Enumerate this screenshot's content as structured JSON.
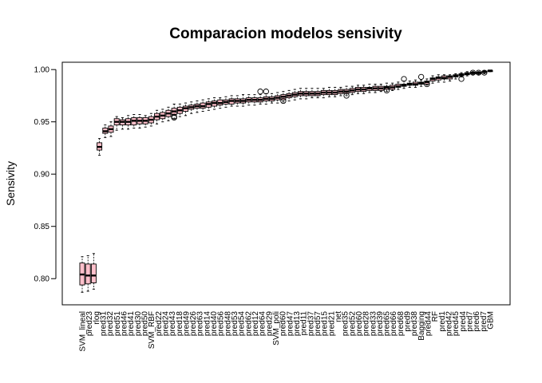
{
  "chart_data": {
    "type": "boxplot",
    "title": "Comparacion modelos sensivity",
    "xlabel": "",
    "ylabel": "Sensivity",
    "ylim": [
      0.775,
      1.007
    ],
    "yticks": [
      0.8,
      0.85,
      0.9,
      0.95,
      1.0
    ],
    "ytick_labels": [
      "0.80",
      "0.85",
      "0.90",
      "0.95",
      "1.00"
    ],
    "grid": false,
    "legend": "none",
    "box_fill": "#ffc0cb",
    "n_categories": 72,
    "category_labels_visible": [
      {
        "index": 0,
        "label": "SVM_lineal"
      },
      {
        "index": 1,
        "label": "pred23"
      },
      {
        "index": 2,
        "label": "rlog"
      },
      {
        "index": 3,
        "label": "pred31"
      },
      {
        "index": 4,
        "label": "pred32"
      },
      {
        "index": 5,
        "label": "pred51"
      },
      {
        "index": 6,
        "label": "pred46"
      },
      {
        "index": 7,
        "label": "pred41"
      },
      {
        "index": 8,
        "label": "pred30"
      },
      {
        "index": 9,
        "label": "pred50"
      },
      {
        "index": 10,
        "label": "SVM_RBF"
      },
      {
        "index": 11,
        "label": "pred22"
      },
      {
        "index": 12,
        "label": "pred24"
      },
      {
        "index": 13,
        "label": "pred43"
      },
      {
        "index": 14,
        "label": "pred18"
      },
      {
        "index": 15,
        "label": "pred49"
      },
      {
        "index": 16,
        "label": "pred26"
      },
      {
        "index": 17,
        "label": "pred63"
      },
      {
        "index": 18,
        "label": "pred14"
      },
      {
        "index": 19,
        "label": "pred40"
      },
      {
        "index": 20,
        "label": "pred56"
      },
      {
        "index": 21,
        "label": "pred48"
      },
      {
        "index": 22,
        "label": "pred53"
      },
      {
        "index": 23,
        "label": "pred54"
      },
      {
        "index": 24,
        "label": "pred62"
      },
      {
        "index": 25,
        "label": "pred12"
      },
      {
        "index": 26,
        "label": "pred64"
      },
      {
        "index": 27,
        "label": "pred29"
      },
      {
        "index": 28,
        "label": "SVM_poli"
      },
      {
        "index": 29,
        "label": "pred60"
      },
      {
        "index": 30,
        "label": "pred47"
      },
      {
        "index": 31,
        "label": "pred13"
      },
      {
        "index": 32,
        "label": "pred11"
      },
      {
        "index": 33,
        "label": "pred37"
      },
      {
        "index": 34,
        "label": "pred57"
      },
      {
        "index": 35,
        "label": "pred15"
      },
      {
        "index": 36,
        "label": "pred21"
      },
      {
        "index": 37,
        "label": "net"
      },
      {
        "index": 38,
        "label": "pred35"
      },
      {
        "index": 39,
        "label": "pred52"
      },
      {
        "index": 40,
        "label": "pred60"
      },
      {
        "index": 41,
        "label": "pred28"
      },
      {
        "index": 42,
        "label": "pred33"
      },
      {
        "index": 43,
        "label": "pred39"
      },
      {
        "index": 44,
        "label": "pred65"
      },
      {
        "index": 45,
        "label": "pred66"
      },
      {
        "index": 46,
        "label": "pred68"
      },
      {
        "index": 47,
        "label": "pred9"
      },
      {
        "index": 48,
        "label": "pred38"
      },
      {
        "index": 49,
        "label": "Bagging"
      },
      {
        "index": 50,
        "label": "pred44"
      },
      {
        "index": 51,
        "label": "RF"
      },
      {
        "index": 52,
        "label": "pred1"
      },
      {
        "index": 53,
        "label": "pred42"
      },
      {
        "index": 54,
        "label": "pred45"
      },
      {
        "index": 55,
        "label": "pred4"
      },
      {
        "index": 56,
        "label": "pred7"
      },
      {
        "index": 57,
        "label": "pred6"
      },
      {
        "index": 58,
        "label": "pred7"
      },
      {
        "index": 59,
        "label": "GBM"
      }
    ],
    "boxes": [
      {
        "whislo": 0.787,
        "q1": 0.794,
        "med": 0.804,
        "q3": 0.815,
        "whishi": 0.821,
        "outliers": []
      },
      {
        "whislo": 0.788,
        "q1": 0.795,
        "med": 0.803,
        "q3": 0.814,
        "whishi": 0.822,
        "outliers": []
      },
      {
        "whislo": 0.79,
        "q1": 0.796,
        "med": 0.803,
        "q3": 0.814,
        "whishi": 0.824,
        "outliers": []
      },
      {
        "whislo": 0.918,
        "q1": 0.923,
        "med": 0.926,
        "q3": 0.93,
        "whishi": 0.934,
        "outliers": []
      },
      {
        "whislo": 0.935,
        "q1": 0.939,
        "med": 0.941,
        "q3": 0.944,
        "whishi": 0.947,
        "outliers": []
      },
      {
        "whislo": 0.936,
        "q1": 0.94,
        "med": 0.943,
        "q3": 0.946,
        "whishi": 0.95,
        "outliers": []
      },
      {
        "whislo": 0.942,
        "q1": 0.947,
        "med": 0.95,
        "q3": 0.953,
        "whishi": 0.955,
        "outliers": []
      },
      {
        "whislo": 0.943,
        "q1": 0.947,
        "med": 0.95,
        "q3": 0.952,
        "whishi": 0.954,
        "outliers": []
      },
      {
        "whislo": 0.943,
        "q1": 0.947,
        "med": 0.95,
        "q3": 0.953,
        "whishi": 0.956,
        "outliers": []
      },
      {
        "whislo": 0.944,
        "q1": 0.947,
        "med": 0.951,
        "q3": 0.954,
        "whishi": 0.957,
        "outliers": []
      },
      {
        "whislo": 0.944,
        "q1": 0.948,
        "med": 0.951,
        "q3": 0.954,
        "whishi": 0.957,
        "outliers": []
      },
      {
        "whislo": 0.945,
        "q1": 0.948,
        "med": 0.951,
        "q3": 0.954,
        "whishi": 0.956,
        "outliers": []
      },
      {
        "whislo": 0.946,
        "q1": 0.949,
        "med": 0.952,
        "q3": 0.955,
        "whishi": 0.958,
        "outliers": []
      },
      {
        "whislo": 0.948,
        "q1": 0.952,
        "med": 0.955,
        "q3": 0.958,
        "whishi": 0.961,
        "outliers": []
      },
      {
        "whislo": 0.95,
        "q1": 0.953,
        "med": 0.956,
        "q3": 0.959,
        "whishi": 0.962,
        "outliers": []
      },
      {
        "whislo": 0.951,
        "q1": 0.955,
        "med": 0.958,
        "q3": 0.961,
        "whishi": 0.964,
        "outliers": []
      },
      {
        "whislo": 0.953,
        "q1": 0.957,
        "med": 0.96,
        "q3": 0.963,
        "whishi": 0.967,
        "outliers": [
          0.954,
          0.955
        ]
      },
      {
        "whislo": 0.955,
        "q1": 0.958,
        "med": 0.961,
        "q3": 0.964,
        "whishi": 0.967,
        "outliers": []
      },
      {
        "whislo": 0.956,
        "q1": 0.96,
        "med": 0.963,
        "q3": 0.965,
        "whishi": 0.968,
        "outliers": []
      },
      {
        "whislo": 0.958,
        "q1": 0.962,
        "med": 0.964,
        "q3": 0.966,
        "whishi": 0.969,
        "outliers": []
      },
      {
        "whislo": 0.959,
        "q1": 0.963,
        "med": 0.965,
        "q3": 0.967,
        "whishi": 0.97,
        "outliers": []
      },
      {
        "whislo": 0.96,
        "q1": 0.963,
        "med": 0.965,
        "q3": 0.968,
        "whishi": 0.971,
        "outliers": []
      },
      {
        "whislo": 0.961,
        "q1": 0.964,
        "med": 0.967,
        "q3": 0.969,
        "whishi": 0.972,
        "outliers": []
      },
      {
        "whislo": 0.962,
        "q1": 0.965,
        "med": 0.968,
        "q3": 0.97,
        "whishi": 0.973,
        "outliers": []
      },
      {
        "whislo": 0.963,
        "q1": 0.966,
        "med": 0.968,
        "q3": 0.971,
        "whishi": 0.973,
        "outliers": []
      },
      {
        "whislo": 0.964,
        "q1": 0.967,
        "med": 0.969,
        "q3": 0.971,
        "whishi": 0.974,
        "outliers": []
      },
      {
        "whislo": 0.965,
        "q1": 0.967,
        "med": 0.97,
        "q3": 0.972,
        "whishi": 0.975,
        "outliers": []
      },
      {
        "whislo": 0.965,
        "q1": 0.968,
        "med": 0.97,
        "q3": 0.972,
        "whishi": 0.975,
        "outliers": []
      },
      {
        "whislo": 0.965,
        "q1": 0.968,
        "med": 0.97,
        "q3": 0.972,
        "whishi": 0.976,
        "outliers": []
      },
      {
        "whislo": 0.966,
        "q1": 0.969,
        "med": 0.971,
        "q3": 0.973,
        "whishi": 0.976,
        "outliers": []
      },
      {
        "whislo": 0.966,
        "q1": 0.969,
        "med": 0.971,
        "q3": 0.973,
        "whishi": 0.976,
        "outliers": []
      },
      {
        "whislo": 0.967,
        "q1": 0.969,
        "med": 0.971,
        "q3": 0.973,
        "whishi": 0.976,
        "outliers": [
          0.979
        ]
      },
      {
        "whislo": 0.967,
        "q1": 0.97,
        "med": 0.972,
        "q3": 0.974,
        "whishi": 0.977,
        "outliers": [
          0.979
        ]
      },
      {
        "whislo": 0.968,
        "q1": 0.97,
        "med": 0.972,
        "q3": 0.974,
        "whishi": 0.977,
        "outliers": []
      },
      {
        "whislo": 0.968,
        "q1": 0.971,
        "med": 0.973,
        "q3": 0.975,
        "whishi": 0.978,
        "outliers": []
      },
      {
        "whislo": 0.969,
        "q1": 0.971,
        "med": 0.974,
        "q3": 0.976,
        "whishi": 0.979,
        "outliers": [
          0.97
        ]
      },
      {
        "whislo": 0.97,
        "q1": 0.973,
        "med": 0.975,
        "q3": 0.977,
        "whishi": 0.98,
        "outliers": []
      },
      {
        "whislo": 0.971,
        "q1": 0.974,
        "med": 0.976,
        "q3": 0.978,
        "whishi": 0.981,
        "outliers": []
      },
      {
        "whislo": 0.972,
        "q1": 0.975,
        "med": 0.977,
        "q3": 0.979,
        "whishi": 0.982,
        "outliers": []
      },
      {
        "whislo": 0.972,
        "q1": 0.975,
        "med": 0.977,
        "q3": 0.979,
        "whishi": 0.982,
        "outliers": []
      },
      {
        "whislo": 0.973,
        "q1": 0.975,
        "med": 0.977,
        "q3": 0.979,
        "whishi": 0.982,
        "outliers": []
      },
      {
        "whislo": 0.973,
        "q1": 0.975,
        "med": 0.977,
        "q3": 0.979,
        "whishi": 0.982,
        "outliers": []
      },
      {
        "whislo": 0.973,
        "q1": 0.976,
        "med": 0.978,
        "q3": 0.98,
        "whishi": 0.982,
        "outliers": []
      },
      {
        "whislo": 0.974,
        "q1": 0.976,
        "med": 0.978,
        "q3": 0.98,
        "whishi": 0.983,
        "outliers": []
      },
      {
        "whislo": 0.974,
        "q1": 0.976,
        "med": 0.978,
        "q3": 0.98,
        "whishi": 0.983,
        "outliers": []
      },
      {
        "whislo": 0.975,
        "q1": 0.977,
        "med": 0.979,
        "q3": 0.981,
        "whishi": 0.983,
        "outliers": []
      },
      {
        "whislo": 0.975,
        "q1": 0.977,
        "med": 0.979,
        "q3": 0.981,
        "whishi": 0.984,
        "outliers": [
          0.975
        ]
      },
      {
        "whislo": 0.976,
        "q1": 0.978,
        "med": 0.98,
        "q3": 0.982,
        "whishi": 0.984,
        "outliers": []
      },
      {
        "whislo": 0.977,
        "q1": 0.979,
        "med": 0.981,
        "q3": 0.983,
        "whishi": 0.985,
        "outliers": []
      },
      {
        "whislo": 0.977,
        "q1": 0.979,
        "med": 0.981,
        "q3": 0.983,
        "whishi": 0.985,
        "outliers": []
      },
      {
        "whislo": 0.978,
        "q1": 0.98,
        "med": 0.982,
        "q3": 0.983,
        "whishi": 0.986,
        "outliers": []
      },
      {
        "whislo": 0.978,
        "q1": 0.98,
        "med": 0.982,
        "q3": 0.984,
        "whishi": 0.986,
        "outliers": []
      },
      {
        "whislo": 0.979,
        "q1": 0.98,
        "med": 0.982,
        "q3": 0.984,
        "whishi": 0.986,
        "outliers": []
      },
      {
        "whislo": 0.979,
        "q1": 0.981,
        "med": 0.983,
        "q3": 0.984,
        "whishi": 0.987,
        "outliers": [
          0.98
        ]
      },
      {
        "whislo": 0.98,
        "q1": 0.981,
        "med": 0.983,
        "q3": 0.985,
        "whishi": 0.987,
        "outliers": []
      },
      {
        "whislo": 0.981,
        "q1": 0.983,
        "med": 0.984,
        "q3": 0.986,
        "whishi": 0.988,
        "outliers": []
      },
      {
        "whislo": 0.982,
        "q1": 0.984,
        "med": 0.985,
        "q3": 0.986,
        "whishi": 0.989,
        "outliers": [
          0.991
        ]
      },
      {
        "whislo": 0.983,
        "q1": 0.985,
        "med": 0.986,
        "q3": 0.987,
        "whishi": 0.989,
        "outliers": []
      },
      {
        "whislo": 0.983,
        "q1": 0.985,
        "med": 0.986,
        "q3": 0.988,
        "whishi": 0.99,
        "outliers": []
      },
      {
        "whislo": 0.984,
        "q1": 0.986,
        "med": 0.987,
        "q3": 0.988,
        "whishi": 0.99,
        "outliers": [
          0.993
        ]
      },
      {
        "whislo": 0.985,
        "q1": 0.986,
        "med": 0.988,
        "q3": 0.989,
        "whishi": 0.991,
        "outliers": [
          0.986
        ]
      },
      {
        "whislo": 0.987,
        "q1": 0.989,
        "med": 0.991,
        "q3": 0.992,
        "whishi": 0.994,
        "outliers": []
      },
      {
        "whislo": 0.988,
        "q1": 0.99,
        "med": 0.992,
        "q3": 0.993,
        "whishi": 0.995,
        "outliers": []
      },
      {
        "whislo": 0.988,
        "q1": 0.991,
        "med": 0.992,
        "q3": 0.994,
        "whishi": 0.995,
        "outliers": []
      },
      {
        "whislo": 0.989,
        "q1": 0.991,
        "med": 0.993,
        "q3": 0.994,
        "whishi": 0.995,
        "outliers": []
      },
      {
        "whislo": 0.991,
        "q1": 0.993,
        "med": 0.994,
        "q3": 0.995,
        "whishi": 0.996,
        "outliers": []
      },
      {
        "whislo": 0.993,
        "q1": 0.994,
        "med": 0.995,
        "q3": 0.996,
        "whishi": 0.997,
        "outliers": [
          0.991
        ]
      },
      {
        "whislo": 0.994,
        "q1": 0.995,
        "med": 0.996,
        "q3": 0.997,
        "whishi": 0.998,
        "outliers": []
      },
      {
        "whislo": 0.995,
        "q1": 0.996,
        "med": 0.997,
        "q3": 0.997,
        "whishi": 0.998,
        "outliers": [
          0.997
        ]
      },
      {
        "whislo": 0.995,
        "q1": 0.996,
        "med": 0.997,
        "q3": 0.997,
        "whishi": 0.998,
        "outliers": [
          0.997
        ]
      },
      {
        "whislo": 0.996,
        "q1": 0.997,
        "med": 0.998,
        "q3": 0.998,
        "whishi": 0.999,
        "outliers": [
          0.997
        ]
      },
      {
        "whislo": 0.998,
        "q1": 0.998,
        "med": 0.999,
        "q3": 0.999,
        "whishi": 0.999,
        "outliers": []
      }
    ]
  }
}
